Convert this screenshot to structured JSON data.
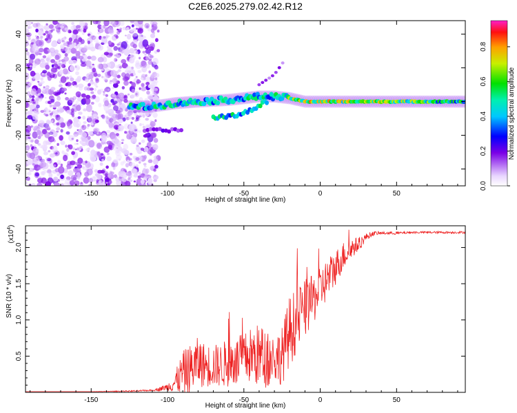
{
  "title": "C2E6.2025.279.02.42.R12",
  "colorbar": {
    "label": "Normalized spectral amplitude",
    "ticks": [
      "0.0",
      "0.2",
      "0.4",
      "0.6",
      "0.8"
    ],
    "range": [
      0.0,
      0.95
    ]
  },
  "chart_data": [
    {
      "type": "heatmap",
      "name": "spectrogram",
      "xlabel": "Height of straight line (km)",
      "ylabel": "Frequency (Hz)",
      "xlim": [
        -193,
        95
      ],
      "ylim": [
        -50,
        48
      ],
      "xticks": [
        -150,
        -100,
        -50,
        0,
        50
      ],
      "xtick_labels": [
        "-150",
        "-100",
        "-50",
        "0",
        "50"
      ],
      "yticks": [
        -40,
        -20,
        0,
        20,
        40
      ],
      "ytick_labels": [
        "-40",
        "-20",
        "0",
        "20",
        "40"
      ],
      "description_values": {
        "noise_region_km": [
          -193,
          -112
        ],
        "main_trace": [
          {
            "x": -125,
            "y": -3
          },
          {
            "x": -110,
            "y": -3
          },
          {
            "x": -95,
            "y": -1
          },
          {
            "x": -80,
            "y": 0
          },
          {
            "x": -60,
            "y": 1
          },
          {
            "x": -40,
            "y": 3
          },
          {
            "x": -30,
            "y": 3
          },
          {
            "x": -20,
            "y": 2
          },
          {
            "x": -10,
            "y": 0
          },
          {
            "x": 0,
            "y": 0
          },
          {
            "x": 20,
            "y": 0
          },
          {
            "x": 50,
            "y": 0
          },
          {
            "x": 95,
            "y": 0
          }
        ],
        "secondary_trace": [
          {
            "x": -70,
            "y": -10
          },
          {
            "x": -55,
            "y": -8
          },
          {
            "x": -45,
            "y": -5
          },
          {
            "x": -35,
            "y": 0
          }
        ],
        "upper_trace": [
          {
            "x": -40,
            "y": 10
          },
          {
            "x": -30,
            "y": 16
          },
          {
            "x": -23,
            "y": 25
          }
        ],
        "lower_band": [
          {
            "x": -115,
            "y": -17
          },
          {
            "x": -90,
            "y": -17
          }
        ]
      }
    },
    {
      "type": "line",
      "name": "snr",
      "xlabel": "Height of straight line (km)",
      "ylabel": "SNR (10 * v/v)",
      "scale_label": "(x10",
      "scale_exponent": "4",
      "xlim": [
        -193,
        95
      ],
      "ylim": [
        0,
        2.3
      ],
      "xticks": [
        -150,
        -100,
        -50,
        0,
        50
      ],
      "xtick_labels": [
        "-150",
        "-100",
        "-50",
        "0",
        "50"
      ],
      "yticks": [
        0.5,
        1.0,
        1.5,
        2.0
      ],
      "ytick_labels": [
        "0.5",
        "1.0",
        "1.5",
        "2.0"
      ],
      "color": "#ee2222",
      "x": [
        -193,
        -150,
        -120,
        -110,
        -105,
        -100,
        -95,
        -90,
        -85,
        -80,
        -75,
        -70,
        -65,
        -60,
        -55,
        -50,
        -45,
        -40,
        -35,
        -30,
        -25,
        -20,
        -15,
        -10,
        -5,
        0,
        5,
        10,
        15,
        20,
        25,
        30,
        35,
        40,
        50,
        60,
        70,
        80,
        95
      ],
      "y": [
        0.01,
        0.01,
        0.02,
        0.03,
        0.05,
        0.08,
        0.15,
        0.3,
        0.35,
        0.45,
        0.4,
        0.4,
        0.4,
        0.45,
        0.45,
        0.5,
        0.55,
        0.55,
        0.5,
        0.5,
        0.55,
        0.9,
        1.05,
        1.2,
        1.3,
        1.45,
        1.6,
        1.75,
        1.9,
        2.0,
        2.05,
        2.15,
        2.2,
        2.2,
        2.2,
        2.21,
        2.21,
        2.21,
        2.21
      ],
      "spread": [
        0,
        0,
        0.01,
        0.01,
        0.03,
        0.05,
        0.15,
        0.3,
        0.35,
        0.35,
        0.3,
        0.3,
        0.3,
        0.35,
        0.35,
        0.35,
        0.4,
        0.45,
        0.4,
        0.35,
        0.4,
        0.5,
        0.45,
        0.4,
        0.35,
        0.3,
        0.3,
        0.25,
        0.2,
        0.15,
        0.1,
        0.05,
        0.03,
        0.02,
        0.02,
        0.015,
        0.015,
        0.015,
        0.015
      ]
    }
  ]
}
